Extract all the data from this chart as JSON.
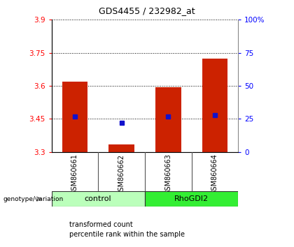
{
  "title": "GDS4455 / 232982_at",
  "samples": [
    "GSM860661",
    "GSM860662",
    "GSM860663",
    "GSM860664"
  ],
  "bar_values": [
    3.62,
    3.335,
    3.595,
    3.725
  ],
  "percentile_values": [
    27,
    22,
    27,
    28
  ],
  "ylim_left": [
    3.3,
    3.9
  ],
  "yticks_left": [
    3.3,
    3.45,
    3.6,
    3.75,
    3.9
  ],
  "ylim_right": [
    0,
    100
  ],
  "yticks_right": [
    0,
    25,
    50,
    75,
    100
  ],
  "ytick_labels_right": [
    "0",
    "25",
    "50",
    "75",
    "100%"
  ],
  "bar_color": "#cc2200",
  "blue_color": "#1111cc",
  "groups": [
    {
      "label": "control",
      "samples": [
        0,
        1
      ],
      "color": "#bbffbb"
    },
    {
      "label": "RhoGDI2",
      "samples": [
        2,
        3
      ],
      "color": "#33ee33"
    }
  ],
  "group_label": "genotype/variation",
  "legend_items": [
    {
      "color": "#cc2200",
      "label": "transformed count"
    },
    {
      "color": "#1111cc",
      "label": "percentile rank within the sample"
    }
  ],
  "bar_width": 0.55,
  "label_area_bg": "#cccccc",
  "title_fontsize": 9
}
